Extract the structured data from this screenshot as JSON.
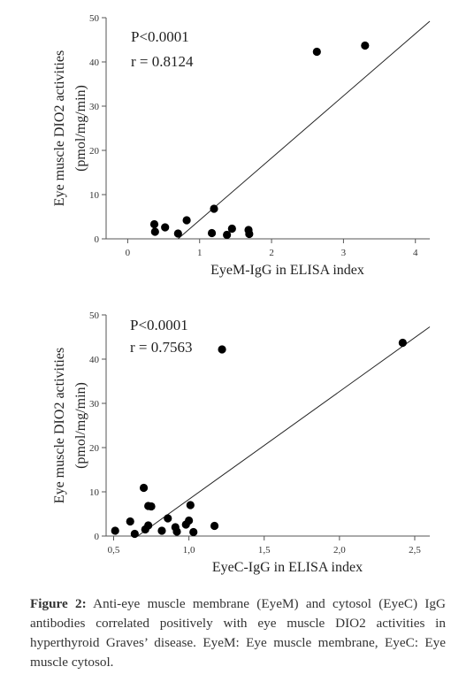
{
  "chart_data": [
    {
      "type": "scatter",
      "title": "",
      "xlabel": "EyeM-IgG  in ELISA index",
      "ylabel": "Eye muscle DIO2 activities",
      "ylabel2": "(pmol/mg/min)",
      "xlim": [
        -0.3,
        4.2
      ],
      "ylim": [
        0,
        50
      ],
      "xticks": [
        0,
        1,
        2,
        3,
        4
      ],
      "xtick_labels": [
        "0",
        "1",
        "2",
        "3",
        "4"
      ],
      "yticks": [
        0,
        10,
        20,
        30,
        40,
        50
      ],
      "ytick_labels": [
        "0",
        "10",
        "20",
        "30",
        "40",
        "50"
      ],
      "annotations": [
        "P<0.0001",
        "r = 0.8124"
      ],
      "points": [
        {
          "x": 0.37,
          "y": 3.3
        },
        {
          "x": 0.38,
          "y": 1.6
        },
        {
          "x": 0.52,
          "y": 2.6
        },
        {
          "x": 0.7,
          "y": 1.2
        },
        {
          "x": 0.82,
          "y": 4.2
        },
        {
          "x": 1.17,
          "y": 1.3
        },
        {
          "x": 1.2,
          "y": 6.8
        },
        {
          "x": 1.38,
          "y": 0.9
        },
        {
          "x": 1.45,
          "y": 2.3
        },
        {
          "x": 1.68,
          "y": 2.0
        },
        {
          "x": 1.69,
          "y": 1.1
        },
        {
          "x": 2.63,
          "y": 42.3
        },
        {
          "x": 3.3,
          "y": 43.7
        }
      ],
      "fit_line": {
        "x": [
          0.7,
          4.2
        ],
        "y": [
          0,
          49.2
        ]
      }
    },
    {
      "type": "scatter",
      "title": "",
      "xlabel": "EyeC-IgG  in ELISA index",
      "ylabel": "Eye muscle DIO2 activities",
      "ylabel2": "(pmol/mg/min)",
      "xlim": [
        0.45,
        2.6
      ],
      "ylim": [
        0,
        50
      ],
      "xticks": [
        0.5,
        1.0,
        1.5,
        2.0,
        2.5
      ],
      "xtick_labels": [
        "0,5",
        "1,0",
        "1,5",
        "2,0",
        "2,5"
      ],
      "yticks": [
        0,
        10,
        20,
        30,
        40,
        50
      ],
      "ytick_labels": [
        "0",
        "10",
        "20",
        "30",
        "40",
        "50"
      ],
      "annotations": [
        "P<0.0001",
        "r = 0.7563"
      ],
      "points": [
        {
          "x": 0.51,
          "y": 1.2
        },
        {
          "x": 0.61,
          "y": 3.3
        },
        {
          "x": 0.64,
          "y": 0.5
        },
        {
          "x": 0.7,
          "y": 10.9
        },
        {
          "x": 0.71,
          "y": 1.5
        },
        {
          "x": 0.73,
          "y": 2.4
        },
        {
          "x": 0.73,
          "y": 6.8
        },
        {
          "x": 0.75,
          "y": 6.7
        },
        {
          "x": 0.82,
          "y": 1.2
        },
        {
          "x": 0.86,
          "y": 4.0
        },
        {
          "x": 0.91,
          "y": 2.0
        },
        {
          "x": 0.92,
          "y": 1.0
        },
        {
          "x": 0.98,
          "y": 2.6
        },
        {
          "x": 1.0,
          "y": 3.5
        },
        {
          "x": 1.01,
          "y": 7.0
        },
        {
          "x": 1.03,
          "y": 0.9
        },
        {
          "x": 1.17,
          "y": 2.3
        },
        {
          "x": 1.22,
          "y": 42.2
        },
        {
          "x": 2.42,
          "y": 43.7
        }
      ],
      "fit_line": {
        "x": [
          0.66,
          2.6
        ],
        "y": [
          0,
          47.3
        ]
      }
    }
  ],
  "caption": {
    "label": "Figure 2:",
    "text": " Anti-eye muscle membrane (EyeM) and cytosol (EyeC) IgG antibodies correlated positively with eye muscle DIO2 activities in hyperthyroid Graves’ disease. EyeM: Eye muscle membrane, EyeC: Eye muscle cytosol."
  }
}
